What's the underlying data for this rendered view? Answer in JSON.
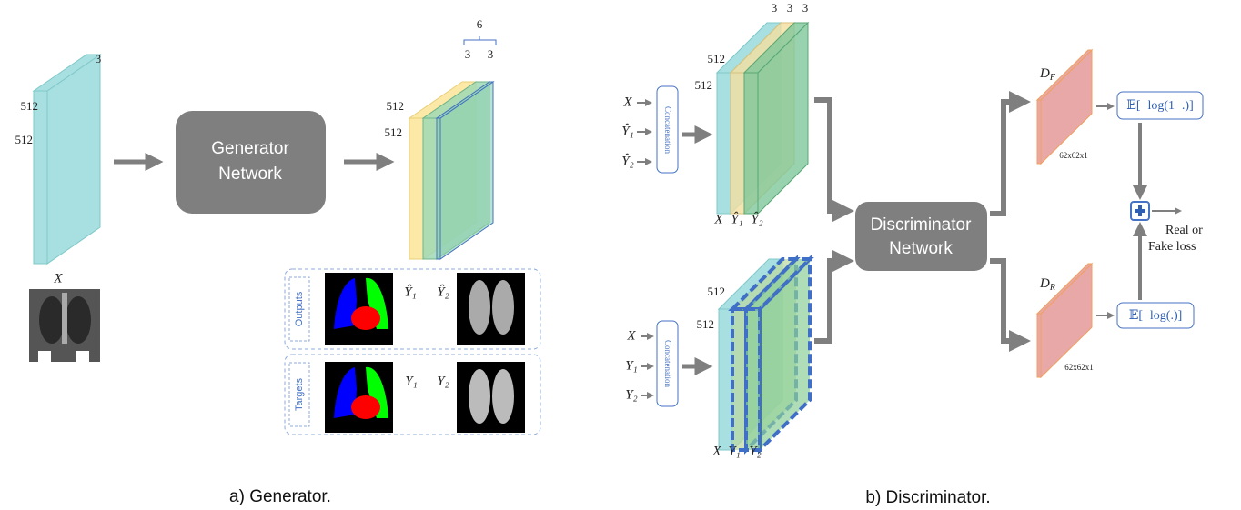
{
  "generator": {
    "input": {
      "depth": 3,
      "height": 512,
      "width": 512,
      "label": "X"
    },
    "network": [
      "Generator",
      "Network"
    ],
    "output": {
      "total": 6,
      "depths": [
        3,
        3
      ],
      "height": 512,
      "width": 512
    },
    "panel": {
      "outputs": "Outputs",
      "targets": "Targets",
      "output_labels": [
        "Ŷ₁",
        "Ŷ₂"
      ],
      "target_labels": [
        "Y₁",
        "Y₂"
      ]
    },
    "caption": "a) Generator."
  },
  "discriminator": {
    "fake": {
      "depths": [
        3,
        3,
        3
      ],
      "height": 512,
      "width": 512,
      "inputs": [
        "X",
        "Ŷ₁",
        "Ŷ₂"
      ],
      "concat": "Concatenation",
      "layer_labels": [
        "X",
        "Ŷ₁",
        "Ŷ₂"
      ]
    },
    "real": {
      "height": 512,
      "width": 512,
      "inputs": [
        "X",
        "Y₁",
        "Y₂"
      ],
      "concat": "Concatenation",
      "layer_labels": [
        "X",
        "Y₁",
        "Y₂"
      ]
    },
    "network": [
      "Discriminator",
      "Network"
    ],
    "d_fake": {
      "name": {
        "base": "D",
        "sub": "F"
      },
      "size": "62x62x1",
      "loss": "𝔼[−log(1−.)]"
    },
    "d_real": {
      "name": {
        "base": "D",
        "sub": "R"
      },
      "size": "62x62x1",
      "loss": "𝔼[−log(.)]"
    },
    "result": [
      "Real or",
      "Fake loss"
    ],
    "caption": "b) Discriminator."
  }
}
